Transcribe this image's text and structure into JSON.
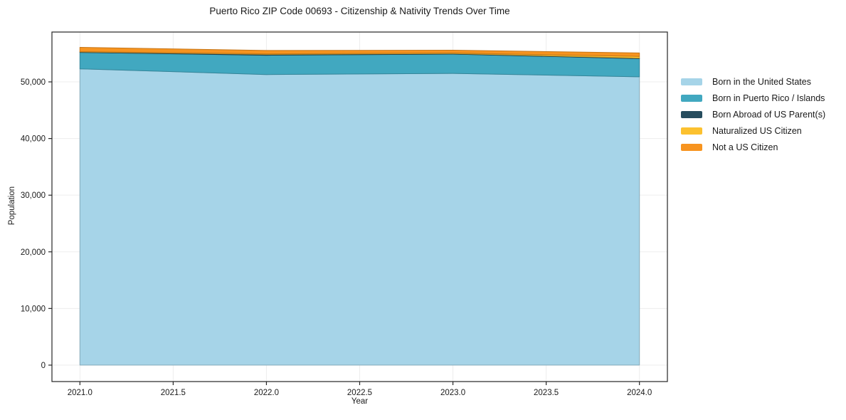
{
  "chart_data": {
    "type": "area",
    "stacked": true,
    "title": "Puerto Rico ZIP Code 00693 - Citizenship & Nativity Trends Over Time",
    "xlabel": "Year",
    "ylabel": "Population",
    "grid": true,
    "legend_position": "right",
    "x": [
      2021,
      2022,
      2023,
      2024
    ],
    "series": [
      {
        "name": "Born in the United States",
        "color": "#a6d4e8",
        "values": [
          52300,
          51300,
          51500,
          50900
        ]
      },
      {
        "name": "Born in Puerto Rico / Islands",
        "color": "#41a8c0",
        "values": [
          2900,
          3400,
          3400,
          3200
        ]
      },
      {
        "name": "Born Abroad of US Parent(s)",
        "color": "#264c5e",
        "values": [
          100,
          150,
          100,
          100
        ]
      },
      {
        "name": "Naturalized US Citizen",
        "color": "#fcc12f",
        "values": [
          50,
          100,
          100,
          300
        ]
      },
      {
        "name": "Not a US Citizen",
        "color": "#f7941f",
        "values": [
          750,
          600,
          500,
          600
        ]
      }
    ],
    "xlim": [
      2020.85,
      2024.15
    ],
    "ylim": [
      -2900,
      58800
    ],
    "xticks": [
      {
        "v": 2021.0,
        "label": "2021.0"
      },
      {
        "v": 2021.5,
        "label": "2021.5"
      },
      {
        "v": 2022.0,
        "label": "2022.0"
      },
      {
        "v": 2022.5,
        "label": "2022.5"
      },
      {
        "v": 2023.0,
        "label": "2023.0"
      },
      {
        "v": 2023.5,
        "label": "2023.5"
      },
      {
        "v": 2024.0,
        "label": "2024.0"
      }
    ],
    "yticks": [
      {
        "v": 0,
        "label": "0"
      },
      {
        "v": 10000,
        "label": "10,000"
      },
      {
        "v": 20000,
        "label": "20,000"
      },
      {
        "v": 30000,
        "label": "30,000"
      },
      {
        "v": 40000,
        "label": "40,000"
      },
      {
        "v": 50000,
        "label": "50,000"
      }
    ]
  }
}
